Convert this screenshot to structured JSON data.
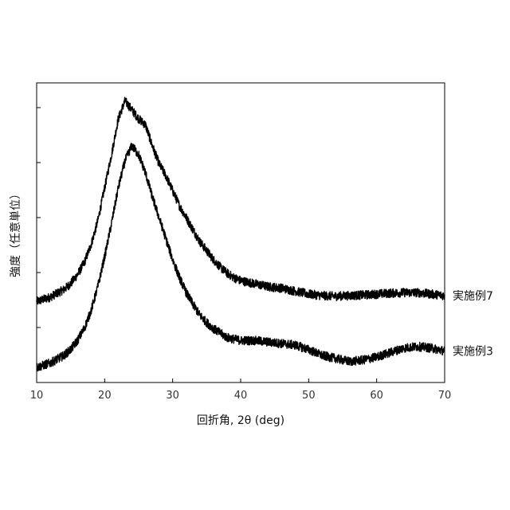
{
  "chart_data": {
    "type": "line",
    "title": "",
    "xlabel": "回折角, 2θ (deg)",
    "ylabel": "強度（任意単位）",
    "xlim": [
      10,
      70
    ],
    "ylim": [
      0,
      1
    ],
    "grid": false,
    "legend": "none",
    "x_ticks": [
      10,
      20,
      30,
      40,
      50,
      60,
      70
    ],
    "x_tick_labels": [
      "10",
      "20",
      "30",
      "40",
      "50",
      "60",
      "70"
    ],
    "y_tick_labels_shown": false,
    "line_color": "#000000",
    "series": [
      {
        "name": "実施例7",
        "x": [
          10,
          12,
          14,
          15,
          16,
          17,
          18,
          19,
          20,
          21,
          22,
          23,
          24,
          25,
          26,
          27,
          28,
          29,
          30,
          31,
          32,
          33,
          34,
          35,
          36,
          37,
          38,
          39,
          40,
          42,
          44,
          46,
          48,
          50,
          52,
          54,
          56,
          58,
          60,
          62,
          64,
          66,
          68,
          70
        ],
        "y": [
          0.27,
          0.285,
          0.31,
          0.33,
          0.36,
          0.4,
          0.46,
          0.54,
          0.65,
          0.76,
          0.88,
          0.94,
          0.91,
          0.88,
          0.86,
          0.79,
          0.73,
          0.69,
          0.64,
          0.59,
          0.55,
          0.51,
          0.47,
          0.44,
          0.41,
          0.385,
          0.365,
          0.35,
          0.34,
          0.33,
          0.32,
          0.315,
          0.305,
          0.295,
          0.29,
          0.288,
          0.29,
          0.292,
          0.295,
          0.298,
          0.3,
          0.3,
          0.295,
          0.29
        ]
      },
      {
        "name": "実施例3",
        "x": [
          10,
          12,
          14,
          15,
          16,
          17,
          18,
          19,
          20,
          21,
          22,
          23,
          24,
          25,
          26,
          27,
          28,
          29,
          30,
          31,
          32,
          33,
          34,
          35,
          36,
          37,
          38,
          39,
          40,
          42,
          44,
          46,
          48,
          50,
          52,
          54,
          56,
          58,
          60,
          62,
          64,
          66,
          68,
          70
        ],
        "y": [
          0.05,
          0.065,
          0.09,
          0.11,
          0.14,
          0.18,
          0.24,
          0.32,
          0.42,
          0.53,
          0.65,
          0.74,
          0.79,
          0.76,
          0.7,
          0.62,
          0.55,
          0.48,
          0.41,
          0.35,
          0.3,
          0.26,
          0.225,
          0.2,
          0.18,
          0.165,
          0.15,
          0.145,
          0.14,
          0.14,
          0.135,
          0.13,
          0.125,
          0.11,
          0.09,
          0.08,
          0.07,
          0.075,
          0.085,
          0.1,
          0.115,
          0.12,
          0.115,
          0.105
        ]
      }
    ]
  }
}
